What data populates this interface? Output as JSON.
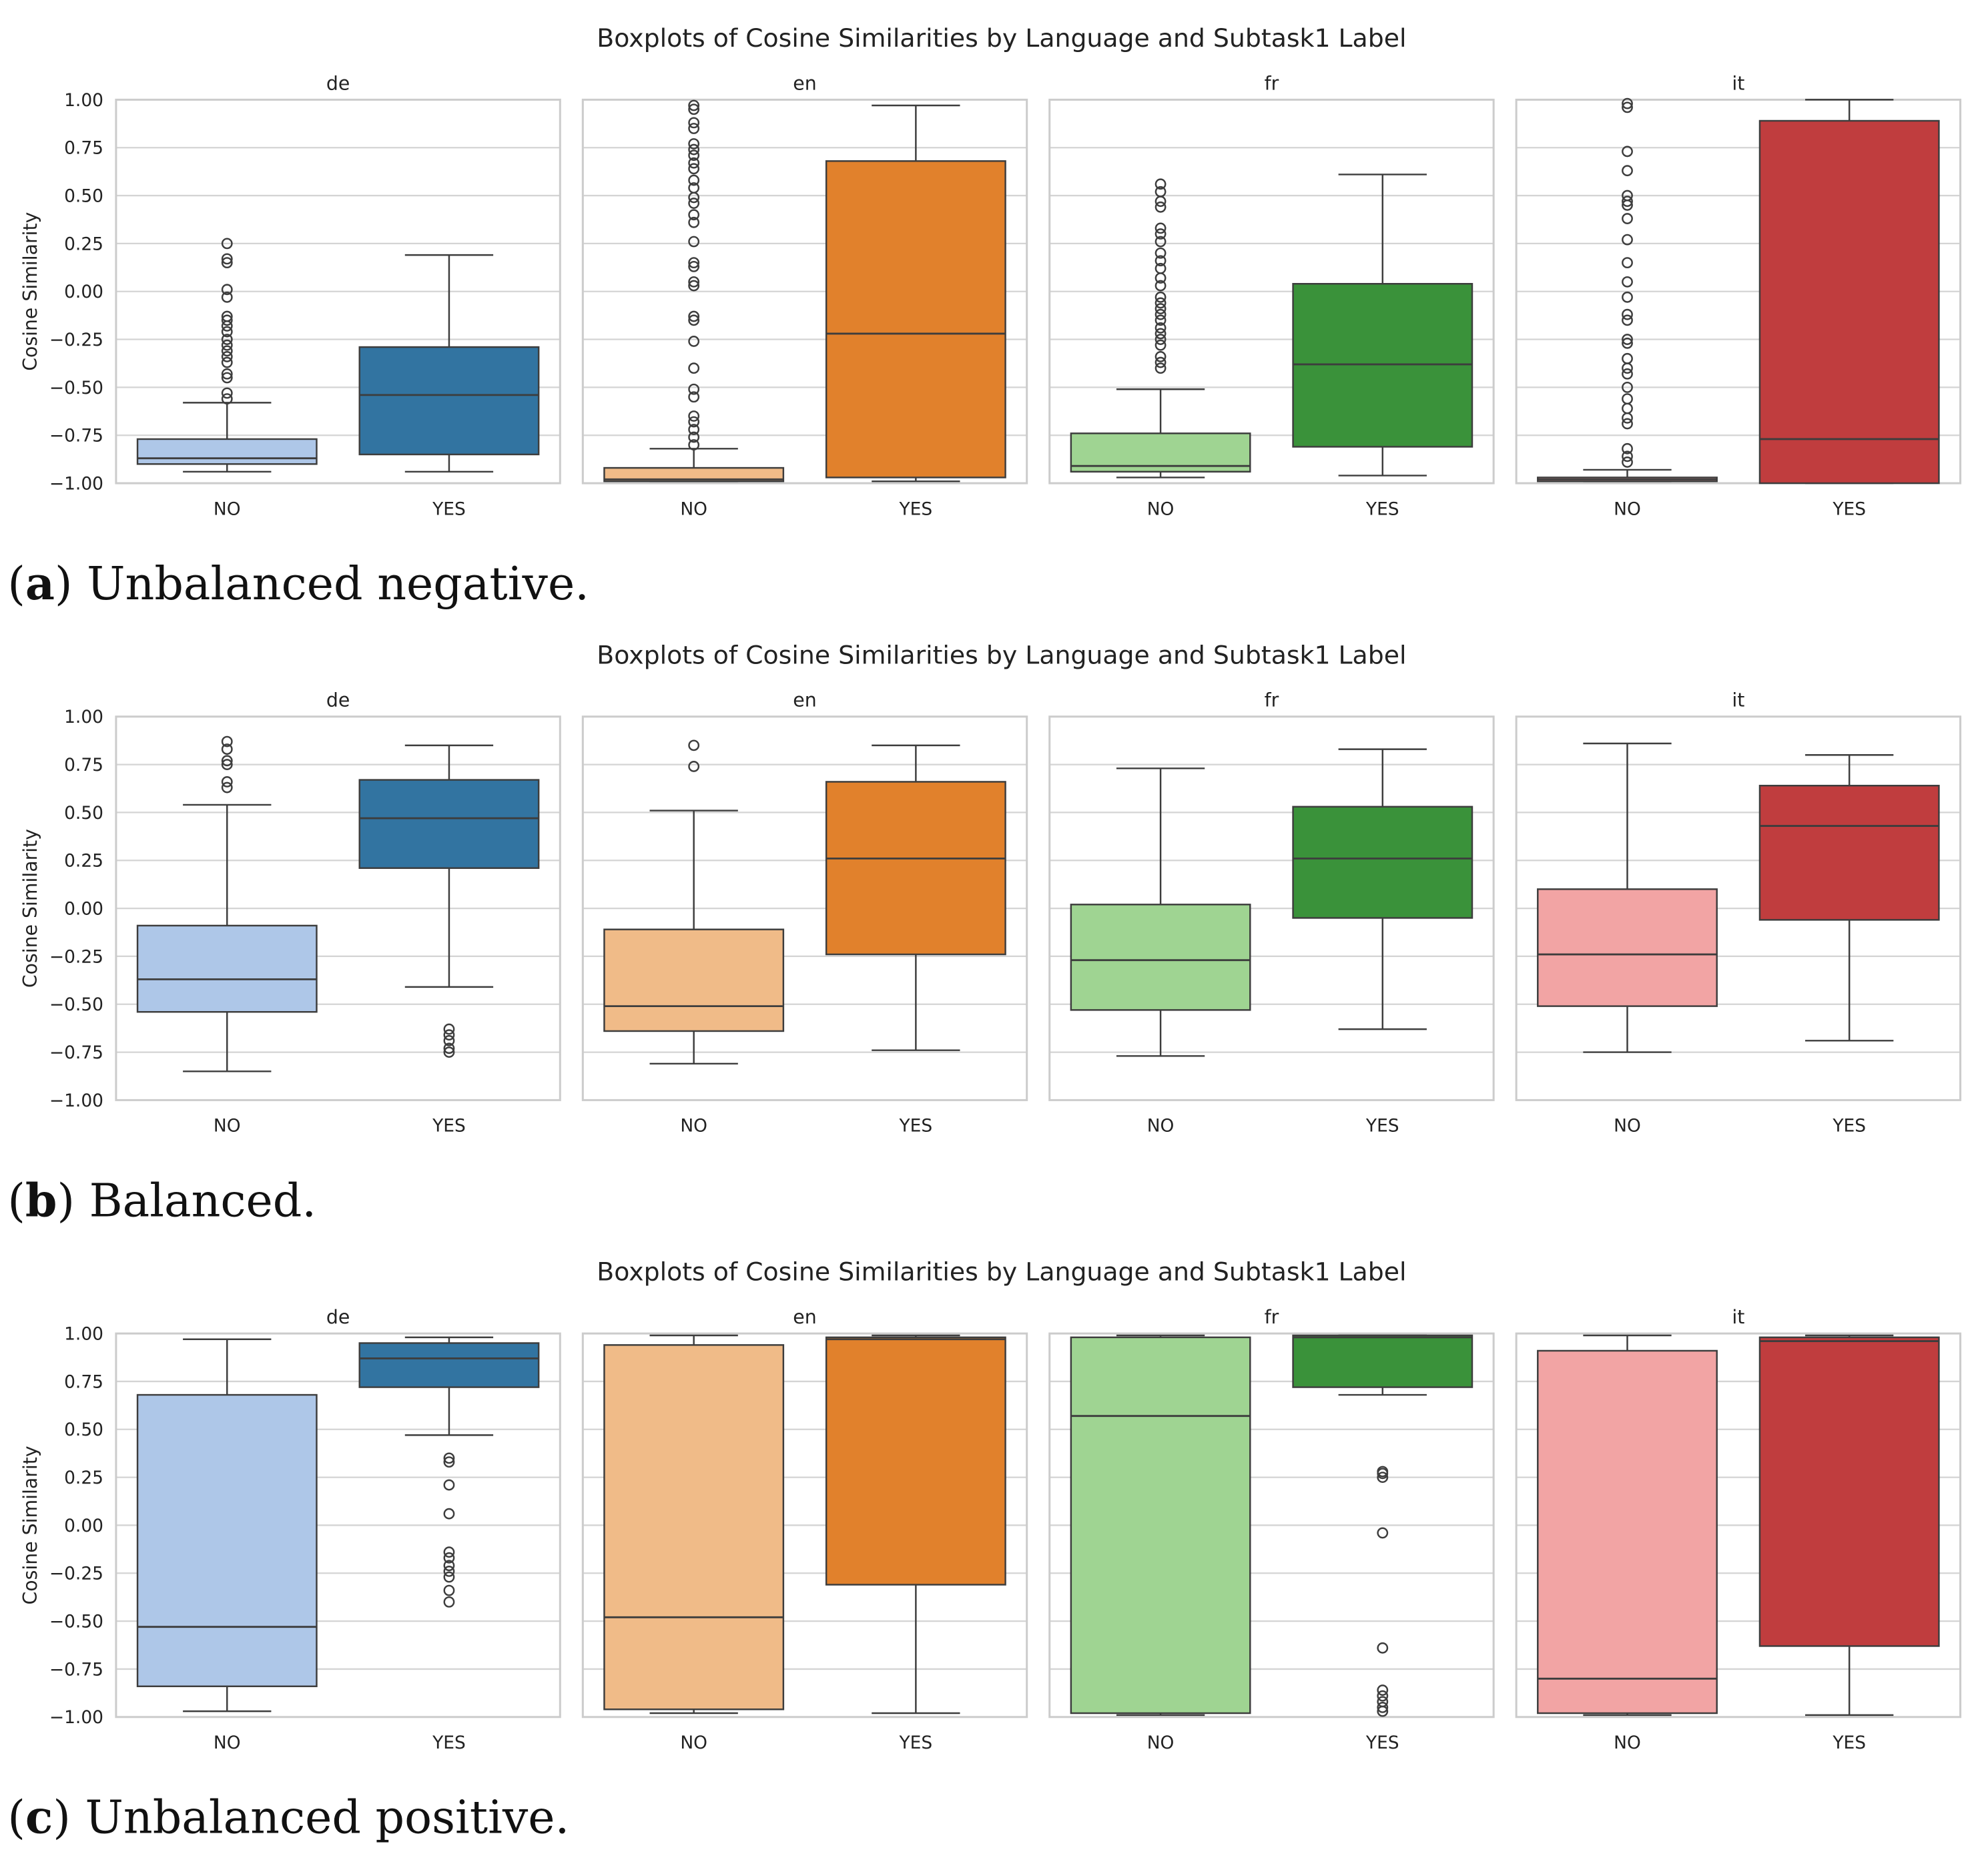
{
  "chart_data": [
    {
      "type": "box",
      "title": "Boxplots of Cosine Similarities by Language and Subtask1 Label",
      "caption_letter": "a",
      "caption_text": " Unbalanced negative.",
      "ylabel": "Cosine Similarity",
      "ylim": [
        -1,
        1
      ],
      "yticks": [
        "1.00",
        "0.75",
        "0.50",
        "0.25",
        "0.00",
        "−0.25",
        "−0.50",
        "−0.75",
        "−1.00"
      ],
      "categories": [
        "NO",
        "YES"
      ],
      "panels": [
        {
          "name": "de",
          "boxes": [
            {
              "lo": -0.94,
              "q1": -0.9,
              "med": -0.87,
              "q3": -0.77,
              "hi": -0.58,
              "out": [
                0.25,
                0.17,
                0.15,
                0.01,
                -0.03,
                -0.13,
                -0.15,
                -0.18,
                -0.21,
                -0.25,
                -0.28,
                -0.31,
                -0.34,
                -0.37,
                -0.43,
                -0.45,
                -0.53,
                -0.56
              ]
            },
            {
              "lo": -0.94,
              "q1": -0.85,
              "med": -0.54,
              "q3": -0.29,
              "hi": 0.19,
              "out": []
            }
          ]
        },
        {
          "name": "en",
          "boxes": [
            {
              "lo": -0.99,
              "q1": -0.99,
              "med": -0.98,
              "q3": -0.92,
              "hi": -0.82,
              "out": [
                0.97,
                0.95,
                0.88,
                0.85,
                0.77,
                0.74,
                0.71,
                0.67,
                0.64,
                0.58,
                0.54,
                0.49,
                0.46,
                0.4,
                0.36,
                0.26,
                0.15,
                0.13,
                0.05,
                0.03,
                -0.13,
                -0.15,
                -0.26,
                -0.4,
                -0.51,
                -0.55,
                -0.65,
                -0.68,
                -0.72,
                -0.76,
                -0.8
              ]
            },
            {
              "lo": -0.99,
              "q1": -0.97,
              "med": -0.22,
              "q3": 0.68,
              "hi": 0.97,
              "out": []
            }
          ]
        },
        {
          "name": "fr",
          "boxes": [
            {
              "lo": -0.97,
              "q1": -0.94,
              "med": -0.91,
              "q3": -0.74,
              "hi": -0.51,
              "out": [
                0.56,
                0.52,
                0.47,
                0.44,
                0.33,
                0.3,
                0.26,
                0.2,
                0.16,
                0.12,
                0.07,
                0.03,
                -0.03,
                -0.06,
                -0.09,
                -0.12,
                -0.15,
                -0.19,
                -0.22,
                -0.25,
                -0.28,
                -0.34,
                -0.37,
                -0.4
              ]
            },
            {
              "lo": -0.96,
              "q1": -0.81,
              "med": -0.38,
              "q3": 0.04,
              "hi": 0.61,
              "out": []
            }
          ]
        },
        {
          "name": "it",
          "boxes": [
            {
              "lo": -0.99,
              "q1": -0.99,
              "med": -0.98,
              "q3": -0.97,
              "hi": -0.93,
              "out": [
                0.98,
                0.96,
                0.73,
                0.63,
                0.5,
                0.47,
                0.45,
                0.38,
                0.27,
                0.15,
                0.05,
                -0.03,
                -0.12,
                -0.15,
                -0.25,
                -0.27,
                -0.35,
                -0.4,
                -0.43,
                -0.5,
                -0.56,
                -0.61,
                -0.66,
                -0.69,
                -0.82,
                -0.86,
                -0.89
              ]
            },
            {
              "lo": -1.0,
              "q1": -1.0,
              "med": -0.77,
              "q3": 0.89,
              "hi": 1.0,
              "out": []
            }
          ]
        }
      ]
    },
    {
      "type": "box",
      "title": "Boxplots of Cosine Similarities by Language and Subtask1 Label",
      "caption_letter": "b",
      "caption_text": " Balanced.",
      "ylabel": "Cosine Similarity",
      "ylim": [
        -1,
        1
      ],
      "yticks": [
        "1.00",
        "0.75",
        "0.50",
        "0.25",
        "0.00",
        "−0.25",
        "−0.50",
        "−0.75",
        "−1.00"
      ],
      "categories": [
        "NO",
        "YES"
      ],
      "panels": [
        {
          "name": "de",
          "boxes": [
            {
              "lo": -0.85,
              "q1": -0.54,
              "med": -0.37,
              "q3": -0.09,
              "hi": 0.54,
              "out": [
                0.87,
                0.83,
                0.77,
                0.75,
                0.66,
                0.63
              ]
            },
            {
              "lo": -0.41,
              "q1": 0.21,
              "med": 0.47,
              "q3": 0.67,
              "hi": 0.85,
              "out": [
                -0.63,
                -0.66,
                -0.69,
                -0.73,
                -0.75
              ]
            }
          ]
        },
        {
          "name": "en",
          "boxes": [
            {
              "lo": -0.81,
              "q1": -0.64,
              "med": -0.51,
              "q3": -0.11,
              "hi": 0.51,
              "out": [
                0.85,
                0.74
              ]
            },
            {
              "lo": -0.74,
              "q1": -0.24,
              "med": 0.26,
              "q3": 0.66,
              "hi": 0.85,
              "out": []
            }
          ]
        },
        {
          "name": "fr",
          "boxes": [
            {
              "lo": -0.77,
              "q1": -0.53,
              "med": -0.27,
              "q3": 0.02,
              "hi": 0.73,
              "out": []
            },
            {
              "lo": -0.63,
              "q1": -0.05,
              "med": 0.26,
              "q3": 0.53,
              "hi": 0.83,
              "out": []
            }
          ]
        },
        {
          "name": "it",
          "boxes": [
            {
              "lo": -0.75,
              "q1": -0.51,
              "med": -0.24,
              "q3": 0.1,
              "hi": 0.86,
              "out": []
            },
            {
              "lo": -0.69,
              "q1": -0.06,
              "med": 0.43,
              "q3": 0.64,
              "hi": 0.8,
              "out": []
            }
          ]
        }
      ]
    },
    {
      "type": "box",
      "title": "Boxplots of Cosine Similarities by Language and Subtask1 Label",
      "caption_letter": "c",
      "caption_text": " Unbalanced positive.",
      "ylabel": "Cosine Similarity",
      "ylim": [
        -1,
        1
      ],
      "yticks": [
        "1.00",
        "0.75",
        "0.50",
        "0.25",
        "0.00",
        "−0.25",
        "−0.50",
        "−0.75",
        "−1.00"
      ],
      "categories": [
        "NO",
        "YES"
      ],
      "panels": [
        {
          "name": "de",
          "boxes": [
            {
              "lo": -0.97,
              "q1": -0.84,
              "med": -0.53,
              "q3": 0.68,
              "hi": 0.97,
              "out": []
            },
            {
              "lo": 0.47,
              "q1": 0.72,
              "med": 0.87,
              "q3": 0.95,
              "hi": 0.98,
              "out": [
                0.35,
                0.33,
                0.21,
                0.06,
                -0.14,
                -0.17,
                -0.21,
                -0.24,
                -0.27,
                -0.34,
                -0.4
              ]
            }
          ]
        },
        {
          "name": "en",
          "boxes": [
            {
              "lo": -0.98,
              "q1": -0.96,
              "med": -0.48,
              "q3": 0.94,
              "hi": 0.99,
              "out": []
            },
            {
              "lo": -0.98,
              "q1": -0.31,
              "med": 0.97,
              "q3": 0.98,
              "hi": 0.99,
              "out": []
            }
          ]
        },
        {
          "name": "fr",
          "boxes": [
            {
              "lo": -0.99,
              "q1": -0.98,
              "med": 0.57,
              "q3": 0.98,
              "hi": 0.99,
              "out": []
            },
            {
              "lo": 0.68,
              "q1": 0.72,
              "med": 0.98,
              "q3": 0.99,
              "hi": 0.99,
              "out": [
                0.28,
                0.27,
                0.25,
                -0.04,
                -0.64,
                -0.86,
                -0.89,
                -0.92,
                -0.95,
                -0.97
              ]
            }
          ]
        },
        {
          "name": "it",
          "boxes": [
            {
              "lo": -0.99,
              "q1": -0.98,
              "med": -0.8,
              "q3": 0.91,
              "hi": 0.99,
              "out": []
            },
            {
              "lo": -0.99,
              "q1": -0.63,
              "med": 0.96,
              "q3": 0.98,
              "hi": 0.99,
              "out": []
            }
          ]
        }
      ]
    }
  ],
  "colors": {
    "de": [
      "#aec7e8",
      "#3274a1"
    ],
    "en": [
      "#f0bb88",
      "#e1812c"
    ],
    "fr": [
      "#9fd492",
      "#3a923a"
    ],
    "it": [
      "#f2a4a4",
      "#c03d3e"
    ],
    "grid": "#d4d4d4",
    "frame": "#cccccc",
    "line": "#3d3d3d"
  }
}
